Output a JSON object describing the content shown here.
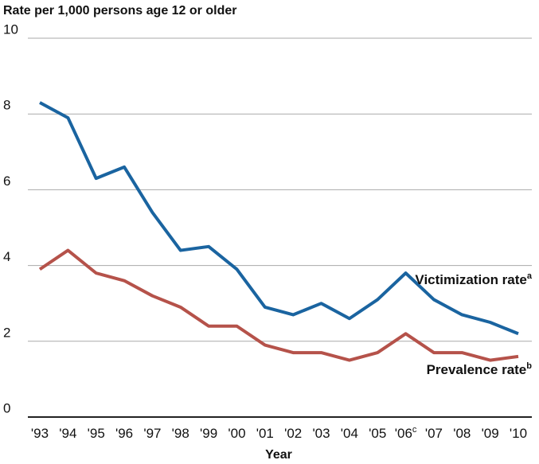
{
  "chart_data": {
    "type": "line",
    "y_axis_title": "Rate per 1,000 persons age 12 or older",
    "x_axis_title": "Year",
    "categories": [
      "'93",
      "'94",
      "'95",
      "'96",
      "'97",
      "'98",
      "'99",
      "'00",
      "'01",
      "'02",
      "'03",
      "'04",
      "'05",
      "'06",
      "'07",
      "'08",
      "'09",
      "'10"
    ],
    "category_superscripts": [
      null,
      null,
      null,
      null,
      null,
      null,
      null,
      null,
      null,
      null,
      null,
      null,
      null,
      "c",
      null,
      null,
      null,
      null
    ],
    "series": [
      {
        "name": "Victimization rate",
        "name_superscript": "a",
        "color": "#1a64a0",
        "values": [
          8.3,
          7.9,
          6.3,
          6.6,
          5.4,
          4.4,
          4.5,
          3.9,
          2.9,
          2.7,
          3.0,
          2.6,
          3.1,
          3.8,
          3.1,
          2.7,
          2.5,
          2.2
        ]
      },
      {
        "name": "Prevalence rate",
        "name_superscript": "b",
        "color": "#b5524a",
        "values": [
          3.9,
          4.4,
          3.8,
          3.6,
          3.2,
          2.9,
          2.4,
          2.4,
          1.9,
          1.7,
          1.7,
          1.5,
          1.7,
          2.2,
          1.7,
          1.7,
          1.5,
          1.6
        ]
      }
    ],
    "ylim": [
      0,
      10
    ],
    "yticks": [
      0,
      2,
      4,
      6,
      8,
      10
    ],
    "grid": true
  }
}
